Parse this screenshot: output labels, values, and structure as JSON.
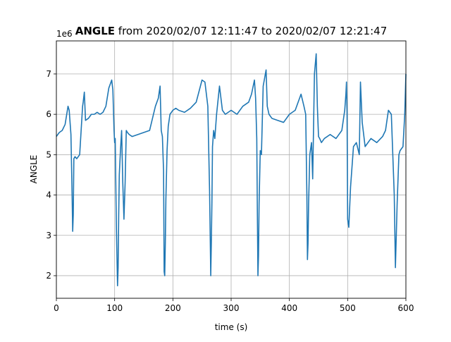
{
  "chart_data": {
    "type": "line",
    "title_bold": "ANGLE",
    "title_rest": " from 2020/02/07 12:11:47 to 2020/02/07 12:21:47",
    "xlabel": "time (s)",
    "ylabel": "ANGLE",
    "y_offset_text": "1e6",
    "xlim": [
      0,
      600
    ],
    "ylim": [
      1.44,
      7.82
    ],
    "x_ticks": [
      0,
      100,
      200,
      300,
      400,
      500,
      600
    ],
    "y_ticks": [
      2,
      3,
      4,
      5,
      6,
      7
    ],
    "grid": true,
    "line_color": "#1f77b4",
    "series": [
      {
        "x": [
          0,
          5,
          10,
          15,
          20,
          22,
          25,
          27,
          28,
          29,
          30,
          32,
          35,
          40,
          45,
          46,
          48,
          50,
          55,
          60,
          65,
          70,
          75,
          80,
          85,
          90,
          95,
          97,
          99,
          100,
          101,
          103,
          105,
          106,
          107,
          108,
          110,
          112,
          114,
          116,
          118,
          120,
          122,
          125,
          130,
          140,
          150,
          160,
          170,
          175,
          178,
          180,
          182,
          184,
          185,
          186,
          187,
          188,
          190,
          192,
          195,
          200,
          205,
          210,
          220,
          230,
          240,
          250,
          255,
          260,
          263,
          265,
          266,
          267,
          268,
          270,
          272,
          275,
          280,
          285,
          290,
          300,
          310,
          320,
          330,
          335,
          340,
          342,
          344,
          345,
          346,
          347,
          348,
          350,
          352,
          355,
          360,
          362,
          365,
          370,
          380,
          390,
          400,
          410,
          420,
          425,
          428,
          430,
          431,
          432,
          433,
          435,
          438,
          440,
          443,
          446,
          448,
          450,
          452,
          455,
          460,
          470,
          480,
          490,
          495,
          497,
          498,
          499,
          500,
          502,
          505,
          510,
          515,
          520,
          522,
          525,
          530,
          540,
          550,
          560,
          565,
          570,
          575,
          580,
          582,
          585,
          588,
          590,
          595,
          598,
          600
        ],
        "y": [
          5.45,
          5.55,
          5.6,
          5.75,
          6.2,
          6.1,
          5.5,
          4.0,
          3.1,
          3.5,
          4.9,
          4.95,
          4.9,
          5.0,
          6.2,
          6.3,
          6.55,
          5.85,
          5.9,
          6.0,
          6.0,
          6.05,
          6.0,
          6.05,
          6.2,
          6.65,
          6.85,
          6.6,
          5.6,
          5.3,
          5.4,
          3.2,
          1.75,
          2.2,
          3.5,
          4.5,
          5.1,
          5.6,
          4.3,
          3.4,
          4.3,
          5.6,
          5.55,
          5.5,
          5.45,
          5.5,
          5.55,
          5.6,
          6.2,
          6.4,
          6.7,
          5.6,
          5.45,
          4.6,
          2.1,
          2.0,
          2.8,
          3.9,
          5.1,
          5.7,
          6.0,
          6.1,
          6.15,
          6.1,
          6.05,
          6.15,
          6.3,
          6.85,
          6.8,
          6.2,
          4.1,
          2.0,
          2.8,
          3.8,
          5.2,
          5.6,
          5.4,
          6.0,
          6.7,
          6.1,
          6.0,
          6.1,
          6.0,
          6.2,
          6.3,
          6.5,
          6.85,
          6.4,
          5.4,
          3.6,
          2.0,
          2.5,
          3.8,
          5.1,
          5.0,
          6.7,
          7.1,
          6.2,
          6.0,
          5.9,
          5.85,
          5.8,
          6.0,
          6.1,
          6.5,
          6.2,
          6.0,
          4.0,
          2.4,
          2.8,
          3.8,
          5.0,
          5.3,
          4.4,
          7.0,
          7.5,
          6.2,
          5.45,
          5.4,
          5.3,
          5.4,
          5.5,
          5.4,
          5.6,
          6.1,
          6.5,
          6.8,
          6.0,
          3.4,
          3.2,
          4.2,
          5.2,
          5.3,
          5.0,
          6.8,
          5.8,
          5.2,
          5.4,
          5.3,
          5.45,
          5.6,
          6.1,
          6.0,
          4.0,
          2.2,
          3.8,
          5.0,
          5.1,
          5.2,
          6.0,
          7.0
        ]
      }
    ]
  }
}
